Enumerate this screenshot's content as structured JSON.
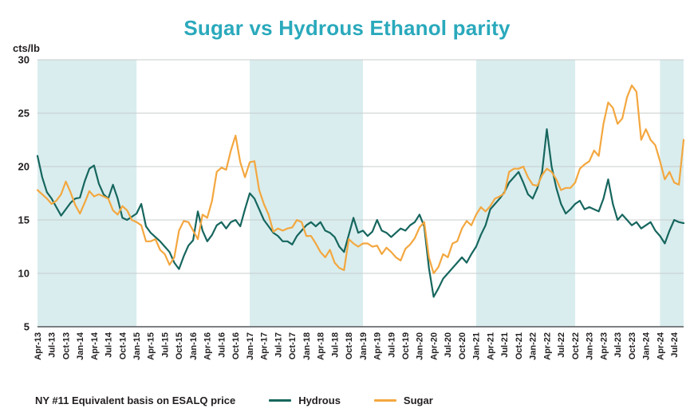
{
  "chart_data": {
    "type": "line",
    "title": "Sugar vs Hydrous Ethanol parity",
    "unit_label": "cts/lb",
    "footnote": "NY #11 Equivalent basis on ESALQ price",
    "title_color": "#2aa9bc",
    "band_color": "#d9edee",
    "grid_color": "#c8cccd",
    "axis_color": "#55565a",
    "text_color": "#231f20",
    "ylim": [
      5,
      30
    ],
    "yticks": [
      5,
      10,
      15,
      20,
      25,
      30
    ],
    "x_start": "Apr-13",
    "frequency": "monthly",
    "x_tick_step_months": 3,
    "x_tick_labels": [
      "Apr-13",
      "Jul-13",
      "Oct-13",
      "Jan-14",
      "Apr-14",
      "Jul-14",
      "Oct-14",
      "Jan-15",
      "Apr-15",
      "Jul-15",
      "Oct-15",
      "Jan-16",
      "Apr-16",
      "Jul-16",
      "Oct-16",
      "Jan-17",
      "Apr-17",
      "Jul-17",
      "Oct-17",
      "Jan-18",
      "Apr-18",
      "Jul-18",
      "Oct-18",
      "Jan-19",
      "Apr-19",
      "Jul-19",
      "Oct-19",
      "Jan-20",
      "Apr-20",
      "Jul-20",
      "Oct-20",
      "Jan-21",
      "Apr-21",
      "Jul-21",
      "Oct-21",
      "Jan-22",
      "Apr-22",
      "Jul-22",
      "Oct-22",
      "Jan-23",
      "Apr-23",
      "Jul-23",
      "Oct-23",
      "Jan-24",
      "Apr-24",
      "Jul-24"
    ],
    "shaded_bands_month_index": [
      [
        0,
        21
      ],
      [
        45,
        69
      ],
      [
        93,
        114
      ],
      [
        132,
        137
      ]
    ],
    "legend_position": "bottom-left",
    "grid": true,
    "series": [
      {
        "name": "Hydrous",
        "color": "#16665e",
        "values": [
          21.0,
          19.0,
          17.6,
          17.0,
          16.2,
          15.4,
          16.0,
          16.6,
          17.0,
          17.1,
          18.6,
          19.8,
          20.1,
          18.4,
          17.4,
          17.0,
          18.3,
          17.0,
          15.2,
          15.0,
          15.3,
          15.6,
          16.5,
          14.4,
          13.8,
          13.4,
          13.0,
          12.5,
          12.0,
          11.0,
          10.4,
          11.6,
          12.6,
          13.1,
          15.8,
          14.0,
          13.0,
          13.6,
          14.5,
          14.8,
          14.2,
          14.8,
          15.0,
          14.4,
          16.0,
          17.5,
          17.0,
          16.0,
          15.0,
          14.4,
          13.8,
          13.5,
          13.0,
          13.0,
          12.7,
          13.5,
          14.0,
          14.5,
          14.8,
          14.4,
          14.8,
          14.0,
          13.8,
          13.4,
          12.5,
          12.0,
          13.6,
          15.2,
          13.8,
          14.0,
          13.5,
          13.9,
          15.0,
          14.0,
          13.8,
          13.4,
          13.8,
          14.2,
          14.0,
          14.5,
          14.8,
          15.5,
          14.4,
          10.5,
          7.8,
          8.6,
          9.5,
          10.0,
          10.5,
          11.0,
          11.5,
          11.0,
          11.8,
          12.5,
          13.6,
          14.5,
          16.0,
          16.5,
          17.0,
          17.6,
          18.5,
          19.0,
          19.5,
          18.5,
          17.4,
          17.0,
          18.0,
          19.5,
          23.5,
          20.0,
          18.0,
          16.5,
          15.6,
          16.0,
          16.5,
          16.8,
          16.0,
          16.2,
          16.0,
          15.8,
          17.0,
          18.8,
          16.5,
          15.0,
          15.5,
          15.0,
          14.5,
          14.8,
          14.2,
          14.5,
          14.8,
          14.0,
          13.5,
          12.8,
          14.0,
          15.0,
          14.8,
          14.7
        ]
      },
      {
        "name": "Sugar",
        "color": "#f3a73f",
        "values": [
          17.8,
          17.4,
          17.0,
          16.5,
          16.8,
          17.4,
          18.6,
          17.6,
          16.4,
          15.6,
          16.6,
          17.7,
          17.2,
          17.4,
          17.2,
          17.0,
          15.9,
          15.5,
          16.3,
          15.9,
          15.0,
          14.8,
          14.5,
          13.0,
          13.0,
          13.2,
          12.2,
          11.8,
          10.8,
          11.5,
          14.0,
          14.9,
          14.8,
          14.0,
          13.2,
          15.5,
          15.2,
          16.8,
          19.5,
          19.9,
          19.7,
          21.5,
          22.9,
          20.4,
          19.0,
          20.4,
          20.5,
          17.8,
          16.5,
          15.5,
          13.9,
          14.2,
          14.0,
          14.2,
          14.3,
          15.0,
          14.8,
          13.5,
          13.5,
          12.8,
          12.0,
          11.5,
          12.2,
          11.0,
          10.5,
          10.3,
          13.2,
          12.8,
          12.5,
          12.8,
          12.8,
          12.5,
          12.6,
          11.8,
          12.4,
          12.0,
          11.5,
          11.2,
          12.3,
          12.7,
          13.3,
          14.3,
          14.8,
          11.5,
          10.0,
          10.6,
          11.8,
          11.5,
          12.8,
          13.0,
          14.2,
          14.9,
          14.5,
          15.5,
          16.2,
          15.8,
          16.3,
          17.0,
          17.2,
          17.5,
          19.5,
          19.8,
          19.8,
          20.0,
          19.0,
          18.3,
          18.2,
          19.2,
          19.8,
          19.5,
          18.8,
          17.8,
          18.0,
          18.0,
          18.5,
          19.8,
          20.2,
          20.5,
          21.5,
          21.0,
          24.0,
          26.0,
          25.5,
          24.0,
          24.5,
          26.5,
          27.6,
          27.0,
          22.5,
          23.5,
          22.5,
          22.0,
          20.5,
          18.8,
          19.5,
          18.5,
          18.3,
          22.5
        ]
      }
    ]
  }
}
